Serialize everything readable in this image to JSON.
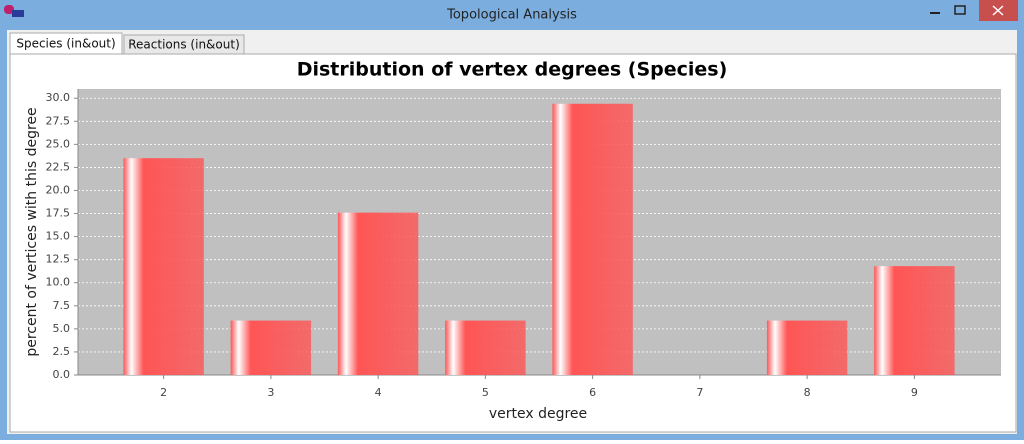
{
  "window": {
    "title": "Topological Analysis"
  },
  "tabs": [
    "Species (in&out)",
    "Reactions (in&out)"
  ],
  "chart_data": {
    "type": "bar",
    "title": "Distribution of vertex degrees (Species)",
    "x_label": "vertex degree",
    "y_label": "percent of vertices with this degree",
    "categories": [
      "2",
      "3",
      "4",
      "5",
      "6",
      "7",
      "8",
      "9"
    ],
    "values": [
      23.5,
      5.9,
      17.6,
      5.9,
      29.4,
      0,
      5.9,
      11.8
    ],
    "color": "#ff5555",
    "ylim": [
      0,
      31
    ],
    "yticks": [
      {
        "value": 0,
        "label": "0.0"
      },
      2.5,
      {
        "value": 5,
        "label": "5.0"
      },
      7.5,
      {
        "value": 10,
        "label": "10.0"
      },
      12.5,
      {
        "value": 15,
        "label": "15.0"
      },
      17.5,
      {
        "value": 20,
        "label": "20.0"
      },
      22.5,
      {
        "value": 25,
        "label": "25.0"
      },
      27.5,
      {
        "value": 30,
        "label": "30.0"
      }
    ],
    "grid": true
  }
}
